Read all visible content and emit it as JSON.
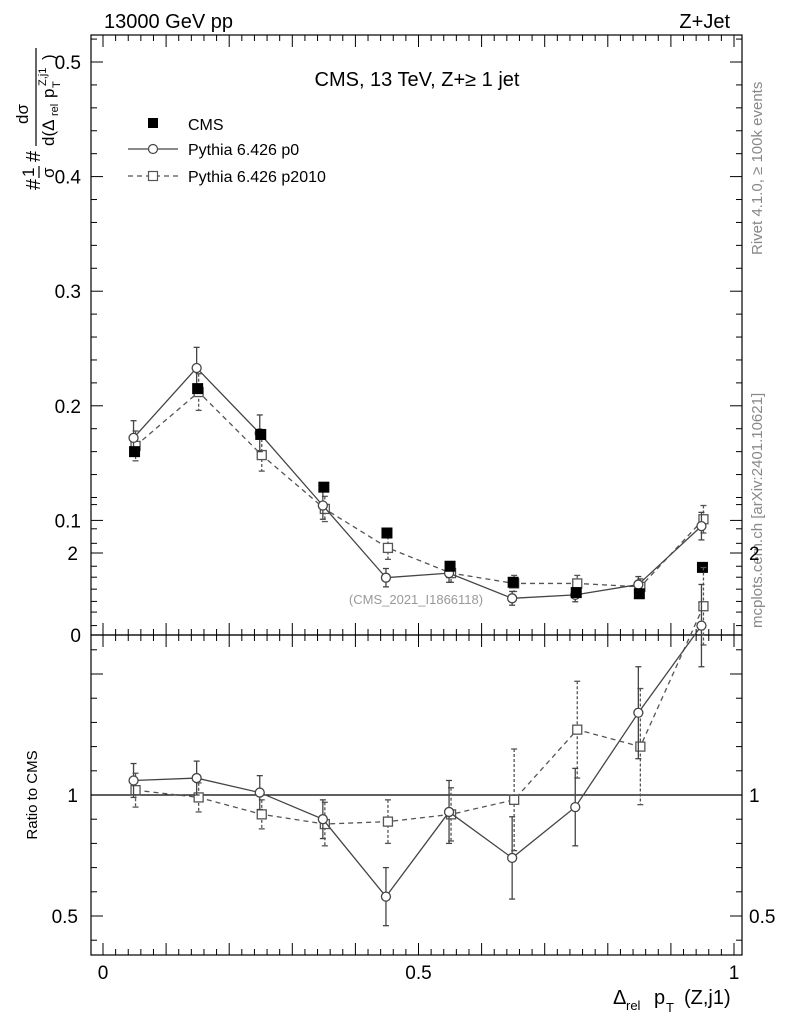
{
  "header": {
    "left": "13000 GeV pp",
    "right": "Z+Jet"
  },
  "side_labels": {
    "rivet": "Rivet 4.1.0, ≥ 100k events",
    "mcplots": "mcplots.cern.ch [arXiv:2401.10621]"
  },
  "chart_data": [
    {
      "type": "scatter",
      "panel": "main",
      "title": "CMS, 13 TeV, Z+≥ 1 jet",
      "watermark": "(CMS_2021_I1866118)",
      "ylabel": "1/σ dσ/d(Δrel pT^{Z,j1})",
      "ylim": [
        0,
        0.52
      ],
      "xlim": [
        -0.01,
        1.0
      ],
      "yticks": [
        {
          "v": 0.0,
          "label": "0"
        },
        {
          "v": 0.1,
          "label": "0.1"
        },
        {
          "v": 0.2,
          "label": "0.2"
        },
        {
          "v": 0.3,
          "label": "0.3"
        },
        {
          "v": 0.4,
          "label": "0.4"
        },
        {
          "v": 0.5,
          "label": "0.5"
        }
      ],
      "legend": [
        {
          "label": "CMS",
          "style": "filled-square"
        },
        {
          "label": "Pythia 6.426 p0",
          "style": "solid-circle"
        },
        {
          "label": "Pythia 6.426 p2010",
          "style": "dashed-square"
        }
      ],
      "x": [
        0.05,
        0.15,
        0.25,
        0.35,
        0.45,
        0.55,
        0.65,
        0.75,
        0.85,
        0.95
      ],
      "series": [
        {
          "name": "CMS",
          "values": [
            0.16,
            0.215,
            0.175,
            0.129,
            0.089,
            0.06,
            0.046,
            0.037,
            0.036,
            0.059
          ],
          "errors": [
            0.003,
            0.003,
            0.003,
            0.003,
            0.002,
            0.002,
            0.002,
            0.002,
            0.002,
            0.002
          ]
        },
        {
          "name": "Pythia 6.426 p0",
          "values": [
            0.172,
            0.233,
            0.176,
            0.113,
            0.05,
            0.054,
            0.032,
            0.035,
            0.044,
            0.095
          ],
          "errors": [
            0.015,
            0.018,
            0.016,
            0.012,
            0.008,
            0.008,
            0.006,
            0.006,
            0.007,
            0.012
          ]
        },
        {
          "name": "Pythia 6.426 p2010",
          "values": [
            0.165,
            0.212,
            0.157,
            0.11,
            0.076,
            0.054,
            0.045,
            0.045,
            0.042,
            0.101
          ],
          "errors": [
            0.013,
            0.016,
            0.014,
            0.011,
            0.01,
            0.008,
            0.007,
            0.007,
            0.007,
            0.012
          ]
        }
      ]
    },
    {
      "type": "scatter",
      "panel": "ratio",
      "ylabel": "Ratio to CMS",
      "xlabel": "Δrel pT (Z,j1)",
      "ylim": [
        0.35,
        2.25
      ],
      "xlim": [
        -0.01,
        1.0
      ],
      "reference_line": 1.0,
      "yticks": [
        {
          "v": 0.5,
          "label": "0.5"
        },
        {
          "v": 1.0,
          "label": "1"
        },
        {
          "v": 2.0,
          "label": "2"
        }
      ],
      "xticks": [
        {
          "v": 0.0,
          "label": "0"
        },
        {
          "v": 0.5,
          "label": "0.5"
        },
        {
          "v": 1.0,
          "label": "1"
        }
      ],
      "x": [
        0.05,
        0.15,
        0.25,
        0.35,
        0.45,
        0.55,
        0.65,
        0.75,
        0.85,
        0.95
      ],
      "series": [
        {
          "name": "Pythia 6.426 p0",
          "values": [
            1.06,
            1.07,
            1.01,
            0.9,
            0.58,
            0.93,
            0.74,
            0.95,
            1.34,
            1.7
          ],
          "errors": [
            0.07,
            0.07,
            0.07,
            0.08,
            0.12,
            0.13,
            0.17,
            0.16,
            0.19,
            0.17
          ]
        },
        {
          "name": "Pythia 6.426 p2010",
          "values": [
            1.02,
            0.99,
            0.92,
            0.88,
            0.89,
            0.92,
            0.98,
            1.27,
            1.2,
            1.78
          ],
          "errors": [
            0.07,
            0.06,
            0.06,
            0.09,
            0.09,
            0.11,
            0.21,
            0.2,
            0.24,
            0.16
          ]
        }
      ]
    }
  ]
}
